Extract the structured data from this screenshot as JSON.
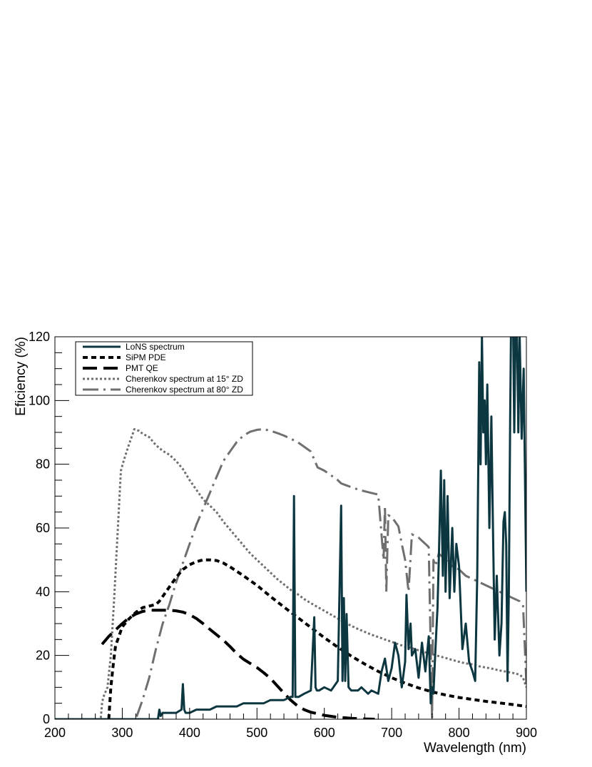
{
  "chart_data": {
    "type": "line",
    "xlabel": "Wavelength (nm)",
    "ylabel": "Eficiency (%)",
    "xlim": [
      200,
      900
    ],
    "ylim": [
      0,
      120
    ],
    "xticks": [
      200,
      300,
      400,
      500,
      600,
      700,
      800,
      900
    ],
    "yticks": [
      0,
      20,
      40,
      60,
      80,
      100,
      120
    ],
    "grid": false,
    "legend_position": "top-left",
    "colors": {
      "lons": "#0c3640",
      "sipm": "#000000",
      "pmt": "#000000",
      "cher15": "#6f6f6f",
      "cher80": "#6f6f6f"
    },
    "series": [
      {
        "key": "lons",
        "name": "LoNS spectrum",
        "x": [
          200,
          300,
          353,
          355,
          357,
          360,
          370,
          380,
          388,
          390,
          392,
          394,
          400,
          410,
          420,
          430,
          440,
          450,
          460,
          470,
          480,
          490,
          500,
          510,
          520,
          530,
          540,
          550,
          553,
          555,
          557,
          559,
          562,
          570,
          580,
          585,
          587,
          589,
          592,
          600,
          610,
          620,
          625,
          627,
          629,
          631,
          633,
          636,
          640,
          650,
          655,
          660,
          665,
          670,
          680,
          685,
          690,
          695,
          700,
          705,
          710,
          715,
          720,
          722,
          725,
          728,
          730,
          735,
          740,
          745,
          750,
          755,
          758,
          760,
          762,
          765,
          768,
          770,
          773,
          776,
          778,
          780,
          783,
          786,
          790,
          793,
          796,
          800,
          805,
          810,
          815,
          820,
          824,
          827,
          830,
          832,
          834,
          836,
          838,
          840,
          842,
          845,
          848,
          850,
          853,
          856,
          860,
          863,
          866,
          868,
          870,
          872,
          874,
          876,
          878,
          880,
          882,
          885,
          888,
          890,
          893,
          896,
          900
        ],
        "y": [
          0,
          0,
          0,
          3,
          1,
          2,
          2,
          2,
          3,
          11,
          3,
          2,
          2,
          3,
          3,
          3,
          4,
          4,
          4,
          4,
          5,
          5,
          5,
          5,
          6,
          6,
          6,
          7,
          7,
          70,
          7,
          7,
          7,
          8,
          9,
          32,
          10,
          9,
          9,
          10,
          9,
          12,
          67,
          12,
          38,
          12,
          33,
          10,
          9,
          9,
          10,
          9,
          8,
          9,
          8,
          15,
          19,
          12,
          16,
          24,
          20,
          10,
          18,
          39,
          22,
          30,
          20,
          22,
          13,
          24,
          15,
          26,
          5,
          10,
          8,
          22,
          35,
          50,
          78,
          45,
          75,
          40,
          70,
          38,
          60,
          40,
          55,
          48,
          22,
          30,
          18,
          15,
          12,
          45,
          112,
          80,
          120,
          90,
          100,
          80,
          105,
          60,
          95,
          65,
          25,
          45,
          20,
          30,
          62,
          65,
          55,
          12,
          40,
          95,
          140,
          130,
          90,
          140,
          90,
          120,
          88,
          110,
          40
        ]
      },
      {
        "key": "sipm",
        "name": "SiPM PDE",
        "x": [
          280,
          283,
          287,
          290,
          295,
          300,
          310,
          320,
          330,
          340,
          350,
          355,
          360,
          370,
          380,
          390,
          400,
          410,
          420,
          430,
          440,
          450,
          460,
          470,
          480,
          490,
          500,
          520,
          540,
          560,
          580,
          600,
          620,
          640,
          660,
          680,
          700,
          720,
          740,
          760,
          780,
          800,
          820,
          840,
          860,
          880,
          900
        ],
        "y": [
          0,
          10,
          18,
          23,
          26,
          29,
          31.5,
          33.5,
          35,
          35.5,
          36,
          37,
          38.5,
          41.5,
          44.5,
          47,
          48.5,
          49.4,
          50,
          50,
          49.8,
          49,
          47.8,
          46.4,
          45,
          43.5,
          42,
          38.5,
          35.2,
          32,
          28.8,
          25.6,
          22.6,
          19.8,
          17.3,
          15,
          13,
          11.3,
          9.8,
          8.6,
          7.6,
          6.8,
          6.2,
          5.6,
          5.1,
          4.6,
          4
        ]
      },
      {
        "key": "pmt",
        "name": "PMT QE",
        "x": [
          270,
          280,
          290,
          300,
          310,
          320,
          330,
          340,
          350,
          360,
          370,
          380,
          390,
          400,
          410,
          420,
          430,
          440,
          450,
          460,
          470,
          480,
          490,
          500,
          510,
          520,
          530,
          540,
          550,
          560,
          570,
          580,
          600,
          620,
          640,
          660,
          675
        ],
        "y": [
          23.5,
          26,
          28,
          30,
          31.8,
          33,
          33.8,
          34.2,
          34.2,
          34.2,
          34.2,
          34,
          33.6,
          32.8,
          31.6,
          30,
          28.2,
          26.5,
          24.8,
          22.8,
          20.6,
          18.8,
          17.5,
          16.2,
          14.6,
          12.8,
          10.5,
          8.2,
          6,
          4.2,
          3,
          2.2,
          1.2,
          0.6,
          0.3,
          0.1,
          0
        ]
      },
      {
        "key": "cher15",
        "name": "Cherenkov spectrum at 15° ZD",
        "x": [
          200,
          268,
          270,
          272,
          278,
          283,
          288,
          293,
          298,
          302,
          308,
          313,
          318,
          320,
          325,
          330,
          340,
          350,
          360,
          370,
          380,
          390,
          400,
          410,
          420,
          430,
          440,
          450,
          460,
          470,
          480,
          490,
          500,
          510,
          520,
          530,
          540,
          550,
          560,
          570,
          580,
          590,
          600,
          610,
          620,
          630,
          640,
          650,
          660,
          670,
          680,
          690,
          700,
          710,
          720,
          730,
          740,
          750,
          760,
          770,
          780,
          790,
          800,
          810,
          820,
          830,
          840,
          850,
          860,
          870,
          880,
          890,
          895,
          900
        ],
        "y": [
          0,
          0,
          5,
          7,
          10,
          20,
          38,
          58,
          78,
          81,
          85,
          88,
          91,
          90.8,
          90.5,
          89.6,
          88.5,
          86,
          84.2,
          83,
          81,
          78.5,
          75,
          72,
          69,
          67,
          65,
          62,
          59.5,
          57,
          54.5,
          52,
          50,
          48,
          46,
          44,
          42.3,
          40.6,
          39.3,
          37.7,
          36.4,
          35.2,
          34,
          32.8,
          31.6,
          30.4,
          29.3,
          28.3,
          27.4,
          26.5,
          25.8,
          25,
          24.3,
          23.5,
          22.8,
          22.3,
          21.6,
          21,
          20.4,
          19.8,
          19.2,
          18.6,
          18,
          17.5,
          17.2,
          16.6,
          16.2,
          15.8,
          15.3,
          14.9,
          14.5,
          14,
          13,
          10
        ]
      },
      {
        "key": "cher80",
        "name": "Cherenkov spectrum at 80° ZD",
        "x": [
          200,
          320,
          330,
          340,
          350,
          360,
          370,
          380,
          390,
          400,
          410,
          420,
          430,
          440,
          450,
          460,
          470,
          480,
          490,
          500,
          510,
          520,
          530,
          540,
          550,
          560,
          570,
          580,
          590,
          600,
          610,
          620,
          625,
          630,
          640,
          650,
          660,
          670,
          680,
          688,
          690,
          692,
          695,
          700,
          705,
          710,
          715,
          720,
          725,
          730,
          735,
          740,
          745,
          750,
          755,
          760,
          762,
          765,
          770,
          780,
          790,
          800,
          810,
          820,
          830,
          840,
          850,
          860,
          870,
          880,
          890,
          895,
          900
        ],
        "y": [
          0,
          0,
          6,
          13,
          22,
          30,
          36,
          43,
          49,
          55,
          61,
          66,
          71,
          76,
          81,
          84,
          87,
          89,
          90.2,
          90.8,
          91,
          90.5,
          89.8,
          89,
          88,
          87,
          85.5,
          84,
          79,
          78,
          76.5,
          75,
          74,
          73.6,
          72.8,
          72.1,
          71.5,
          71,
          70.5,
          50,
          67,
          40,
          64,
          63.5,
          62,
          60.5,
          55,
          50,
          40,
          58,
          57.5,
          57,
          56,
          55,
          54,
          0,
          50,
          48,
          52,
          50,
          48,
          47,
          45,
          44,
          43,
          42,
          41,
          40,
          39,
          38,
          37,
          36,
          11
        ]
      }
    ]
  }
}
